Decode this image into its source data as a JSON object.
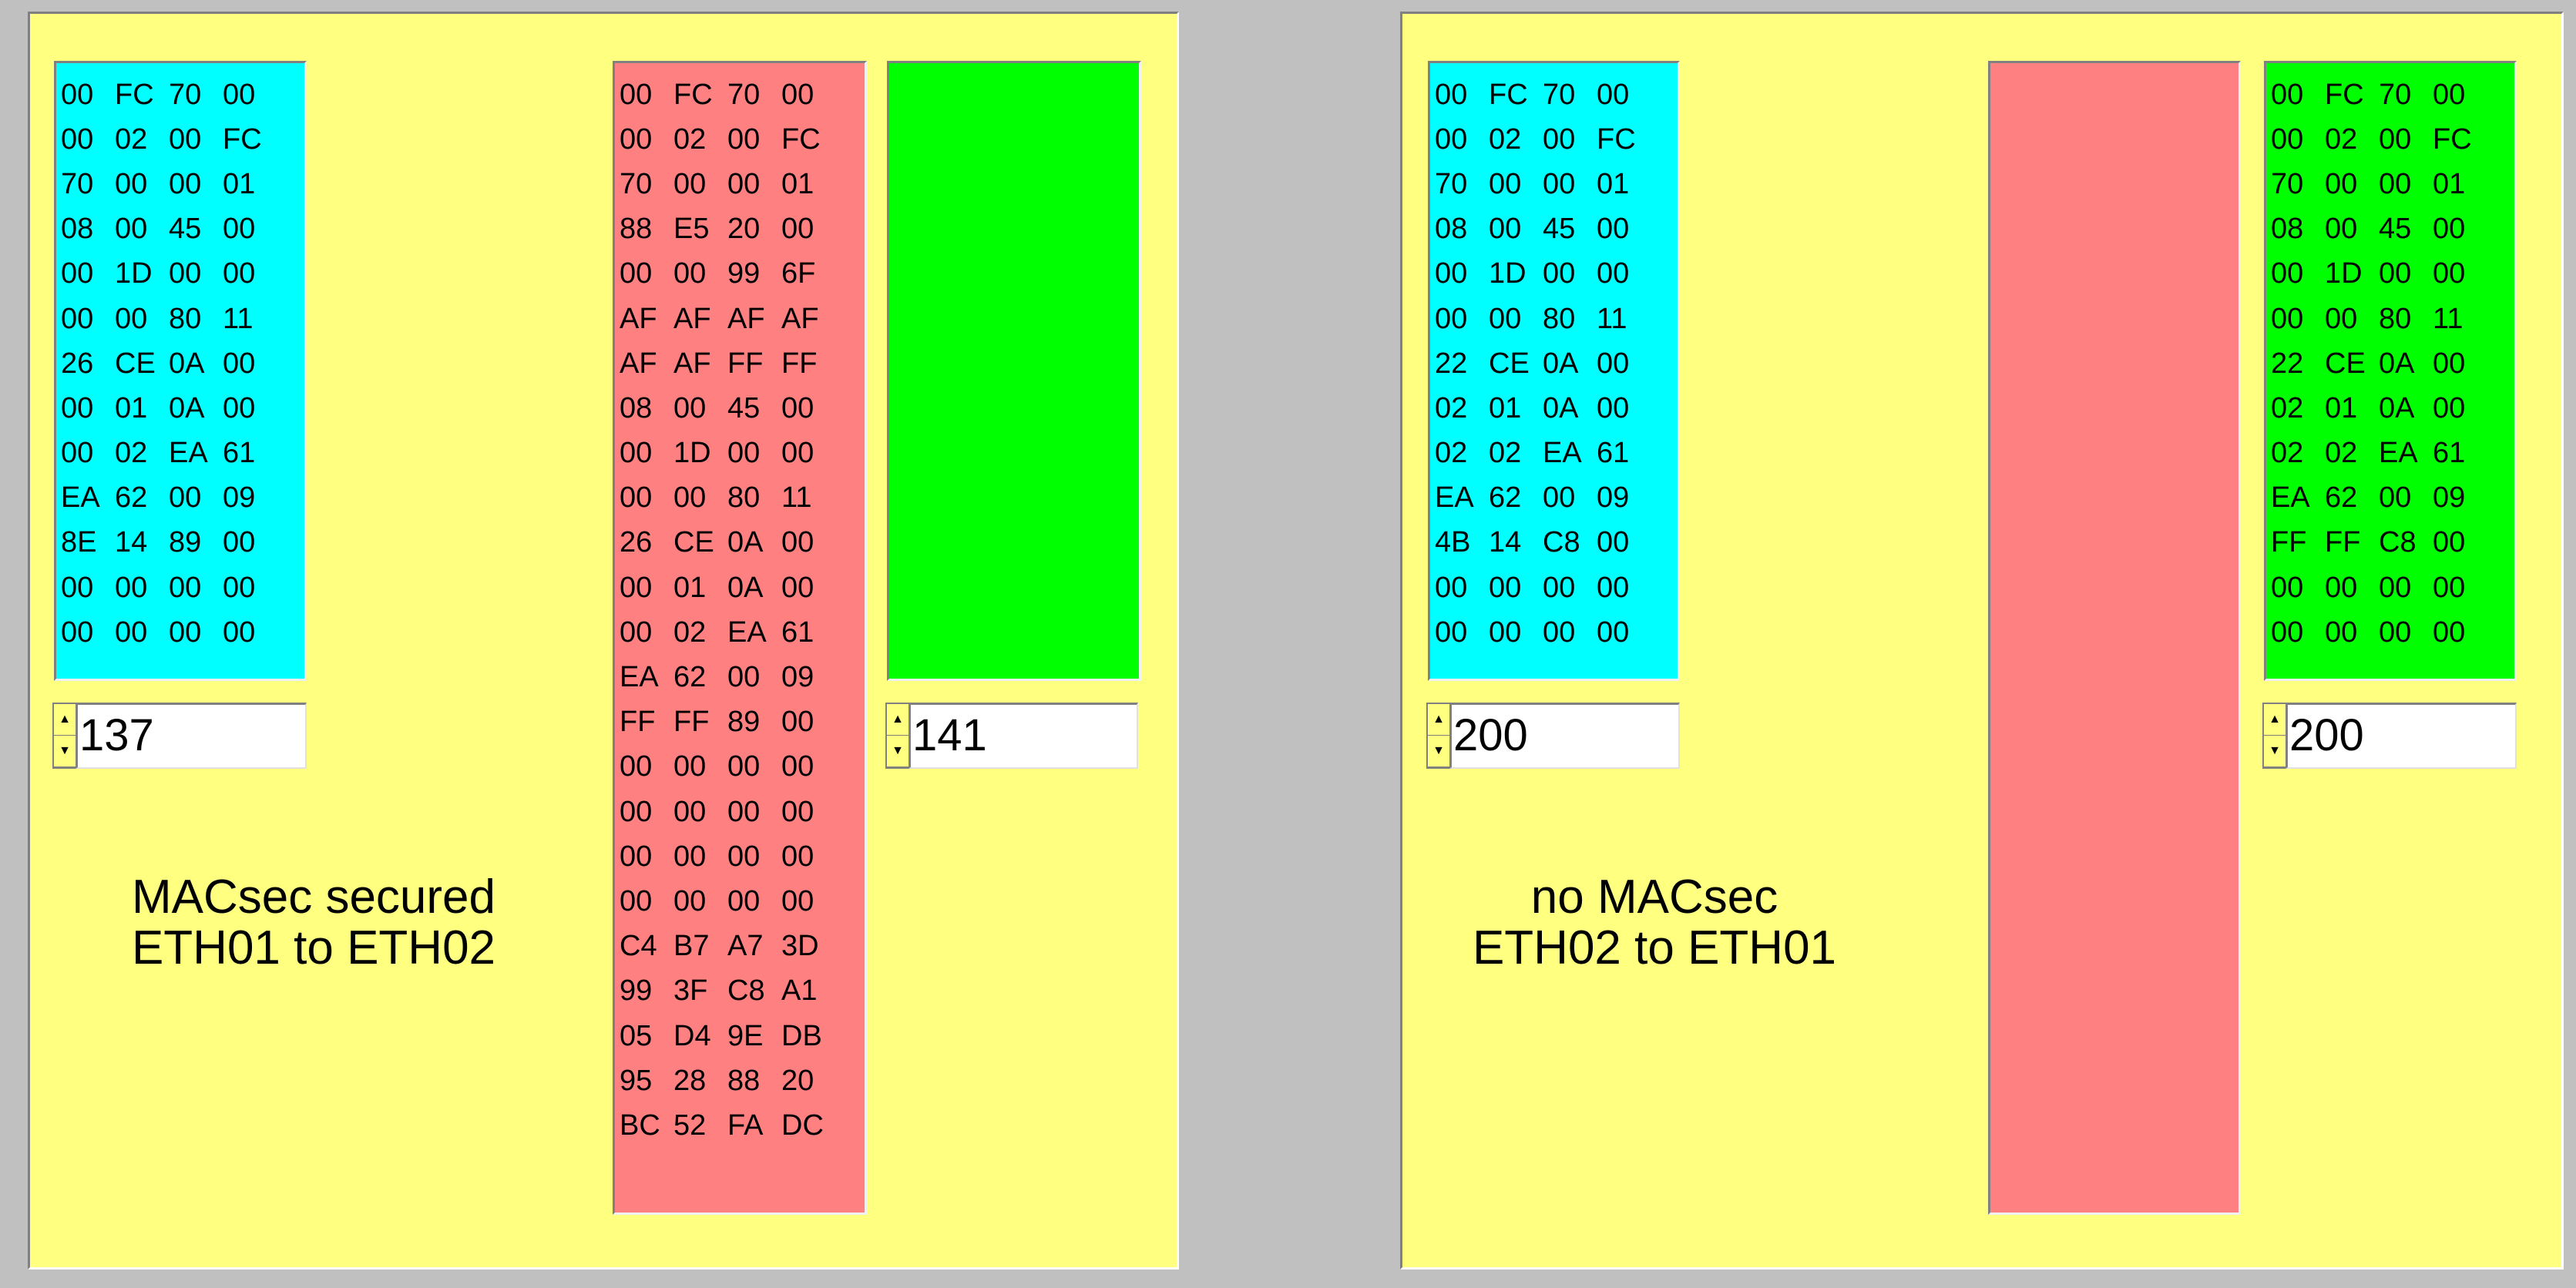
{
  "colors": {
    "background": "#c0c0c0",
    "panel": "#ffff80",
    "tx": "#00ffff",
    "wire": "#ff8080",
    "rx": "#00ff00"
  },
  "left": {
    "label_line1": "MACsec secured",
    "label_line2": "ETH01 to ETH02",
    "tx": {
      "rows": [
        [
          "00",
          "FC",
          "70",
          "00"
        ],
        [
          "00",
          "02",
          "00",
          "FC"
        ],
        [
          "70",
          "00",
          "00",
          "01"
        ],
        [
          "08",
          "00",
          "45",
          "00"
        ],
        [
          "00",
          "1D",
          "00",
          "00"
        ],
        [
          "00",
          "00",
          "80",
          "11"
        ],
        [
          "26",
          "CE",
          "0A",
          "00"
        ],
        [
          "00",
          "01",
          "0A",
          "00"
        ],
        [
          "00",
          "02",
          "EA",
          "61"
        ],
        [
          "EA",
          "62",
          "00",
          "09"
        ],
        [
          "8E",
          "14",
          "89",
          "00"
        ],
        [
          "00",
          "00",
          "00",
          "00"
        ],
        [
          "00",
          "00",
          "00",
          "00"
        ]
      ],
      "count": "137"
    },
    "wire": {
      "rows": [
        [
          "00",
          "FC",
          "70",
          "00"
        ],
        [
          "00",
          "02",
          "00",
          "FC"
        ],
        [
          "70",
          "00",
          "00",
          "01"
        ],
        [
          "88",
          "E5",
          "20",
          "00"
        ],
        [
          "00",
          "00",
          "99",
          "6F"
        ],
        [
          "AF",
          "AF",
          "AF",
          "AF"
        ],
        [
          "AF",
          "AF",
          "FF",
          "FF"
        ],
        [
          "08",
          "00",
          "45",
          "00"
        ],
        [
          "00",
          "1D",
          "00",
          "00"
        ],
        [
          "00",
          "00",
          "80",
          "11"
        ],
        [
          "26",
          "CE",
          "0A",
          "00"
        ],
        [
          "00",
          "01",
          "0A",
          "00"
        ],
        [
          "00",
          "02",
          "EA",
          "61"
        ],
        [
          "EA",
          "62",
          "00",
          "09"
        ],
        [
          "FF",
          "FF",
          "89",
          "00"
        ],
        [
          "00",
          "00",
          "00",
          "00"
        ],
        [
          "00",
          "00",
          "00",
          "00"
        ],
        [
          "00",
          "00",
          "00",
          "00"
        ],
        [
          "00",
          "00",
          "00",
          "00"
        ],
        [
          "C4",
          "B7",
          "A7",
          "3D"
        ],
        [
          "99",
          "3F",
          "C8",
          "A1"
        ],
        [
          "05",
          "D4",
          "9E",
          "DB"
        ],
        [
          "95",
          "28",
          "88",
          "20"
        ],
        [
          "BC",
          "52",
          "FA",
          "DC"
        ]
      ]
    },
    "rx": {
      "rows": [],
      "count": "141"
    }
  },
  "right": {
    "label_line1": "no MACsec",
    "label_line2": "ETH02 to ETH01",
    "tx": {
      "rows": [
        [
          "00",
          "FC",
          "70",
          "00"
        ],
        [
          "00",
          "02",
          "00",
          "FC"
        ],
        [
          "70",
          "00",
          "00",
          "01"
        ],
        [
          "08",
          "00",
          "45",
          "00"
        ],
        [
          "00",
          "1D",
          "00",
          "00"
        ],
        [
          "00",
          "00",
          "80",
          "11"
        ],
        [
          "22",
          "CE",
          "0A",
          "00"
        ],
        [
          "02",
          "01",
          "0A",
          "00"
        ],
        [
          "02",
          "02",
          "EA",
          "61"
        ],
        [
          "EA",
          "62",
          "00",
          "09"
        ],
        [
          "4B",
          "14",
          "C8",
          "00"
        ],
        [
          "00",
          "00",
          "00",
          "00"
        ],
        [
          "00",
          "00",
          "00",
          "00"
        ]
      ],
      "count": "200"
    },
    "wire": {
      "rows": []
    },
    "rx": {
      "rows": [
        [
          "00",
          "FC",
          "70",
          "00"
        ],
        [
          "00",
          "02",
          "00",
          "FC"
        ],
        [
          "70",
          "00",
          "00",
          "01"
        ],
        [
          "08",
          "00",
          "45",
          "00"
        ],
        [
          "00",
          "1D",
          "00",
          "00"
        ],
        [
          "00",
          "00",
          "80",
          "11"
        ],
        [
          "22",
          "CE",
          "0A",
          "00"
        ],
        [
          "02",
          "01",
          "0A",
          "00"
        ],
        [
          "02",
          "02",
          "EA",
          "61"
        ],
        [
          "EA",
          "62",
          "00",
          "09"
        ],
        [
          "FF",
          "FF",
          "C8",
          "00"
        ],
        [
          "00",
          "00",
          "00",
          "00"
        ],
        [
          "00",
          "00",
          "00",
          "00"
        ]
      ],
      "count": "200"
    }
  }
}
